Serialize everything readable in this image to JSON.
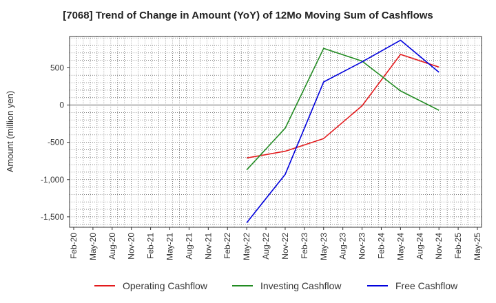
{
  "chart_data": {
    "type": "line",
    "title": "[7068]  Trend of Change in Amount (YoY) of 12Mo Moving Sum of Cashflows",
    "xlabel": "",
    "ylabel": "Amount (million yen)",
    "categories": [
      "Feb-20",
      "May-20",
      "Aug-20",
      "Nov-20",
      "Feb-21",
      "May-21",
      "Aug-21",
      "Nov-21",
      "Feb-22",
      "May-22",
      "Aug-22",
      "Nov-22",
      "Feb-23",
      "May-23",
      "Aug-23",
      "Nov-23",
      "Feb-24",
      "May-24",
      "Aug-24",
      "Nov-24",
      "Feb-25",
      "May-25"
    ],
    "ylim": [
      -1640,
      920
    ],
    "yticks": [
      500,
      0,
      -500,
      -1000,
      -1500
    ],
    "ytick_labels": [
      "500",
      "0",
      "-500",
      "-1,000",
      "-1,500"
    ],
    "grid": true,
    "legend_position": "bottom",
    "series": [
      {
        "name": "Operating Cashflow",
        "color": "#e31a1c",
        "values": [
          null,
          null,
          null,
          null,
          null,
          null,
          null,
          null,
          null,
          -710,
          null,
          -620,
          null,
          -450,
          null,
          -10,
          null,
          680,
          null,
          510,
          null,
          null
        ]
      },
      {
        "name": "Investing Cashflow",
        "color": "#228b22",
        "values": [
          null,
          null,
          null,
          null,
          null,
          null,
          null,
          null,
          null,
          -870,
          null,
          -310,
          null,
          760,
          null,
          590,
          null,
          190,
          null,
          -70,
          null,
          null
        ]
      },
      {
        "name": "Free Cashflow",
        "color": "#0000dd",
        "values": [
          null,
          null,
          null,
          null,
          null,
          null,
          null,
          null,
          null,
          -1580,
          null,
          -930,
          null,
          310,
          null,
          580,
          null,
          870,
          null,
          440,
          null,
          null
        ]
      }
    ]
  }
}
